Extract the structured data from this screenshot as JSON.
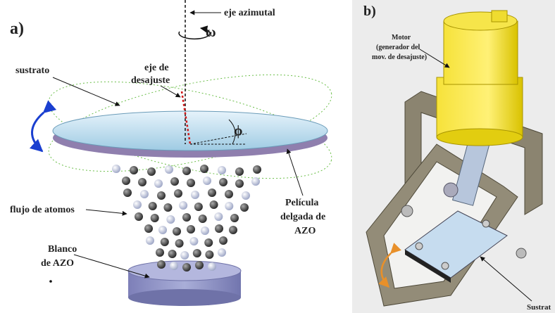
{
  "panel_a": {
    "label": "a)",
    "azimuthal_axis": "eje azimutal",
    "omega": "ω",
    "tilt_axis": [
      "eje de",
      "desajuste"
    ],
    "substrate": "sustrato",
    "phi": "ϕ",
    "atom_flux": "flujo de atomos",
    "film": [
      "Película",
      "delgada de",
      "AZO"
    ],
    "target": [
      "Blanco",
      "de AZO"
    ]
  },
  "panel_b": {
    "label": "b)",
    "motor": [
      "Motor",
      "(generador del",
      "mov. de desajuste)"
    ],
    "substrate": "Sustrat"
  }
}
